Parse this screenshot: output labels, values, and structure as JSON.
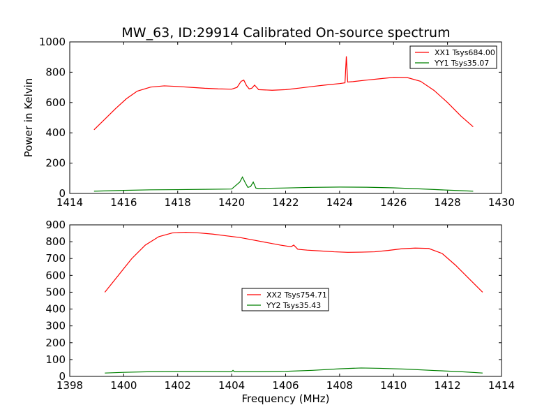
{
  "figure": {
    "title": "MW_63, ID:29914 Calibrated On-source spectrum"
  },
  "chart_data": [
    {
      "type": "line",
      "title": "MW_63, ID:29914 Calibrated On-source spectrum",
      "xlabel": "",
      "ylabel": "Power in Kelvin",
      "xlim": [
        1414,
        1430
      ],
      "ylim": [
        0,
        1000
      ],
      "xticks": [
        "1414",
        "1416",
        "1418",
        "1420",
        "1422",
        "1424",
        "1426",
        "1428",
        "1430"
      ],
      "yticks": [
        "0",
        "200",
        "400",
        "600",
        "800",
        "1000"
      ],
      "grid": false,
      "legend_position": "top-right",
      "series": [
        {
          "name": "XX1 Tsys684.00",
          "color": "#ff0000",
          "x": [
            1414.9,
            1415.3,
            1415.7,
            1416.1,
            1416.5,
            1417.0,
            1417.5,
            1418.0,
            1418.5,
            1419.0,
            1419.5,
            1420.0,
            1420.2,
            1420.35,
            1420.45,
            1420.55,
            1420.65,
            1420.75,
            1420.85,
            1421.0,
            1421.5,
            1422.0,
            1422.5,
            1423.0,
            1423.5,
            1424.0,
            1424.2,
            1424.25,
            1424.3,
            1424.5,
            1425.0,
            1425.5,
            1426.0,
            1426.5,
            1427.0,
            1427.5,
            1428.0,
            1428.5,
            1428.95
          ],
          "y": [
            420,
            490,
            560,
            625,
            675,
            702,
            710,
            706,
            700,
            694,
            690,
            688,
            700,
            740,
            748,
            712,
            690,
            695,
            715,
            685,
            681,
            685,
            695,
            706,
            716,
            725,
            730,
            905,
            735,
            738,
            748,
            757,
            766,
            765,
            740,
            680,
            600,
            510,
            440
          ]
        },
        {
          "name": "YY1 Tsys35.07",
          "color": "#008000",
          "x": [
            1414.9,
            1416.0,
            1417.0,
            1418.0,
            1419.0,
            1420.0,
            1420.3,
            1420.4,
            1420.5,
            1420.6,
            1420.7,
            1420.8,
            1420.9,
            1421.0,
            1422.0,
            1423.0,
            1424.0,
            1425.0,
            1426.0,
            1427.0,
            1428.0,
            1428.95
          ],
          "y": [
            15,
            20,
            24,
            25,
            27,
            29,
            75,
            108,
            72,
            40,
            45,
            75,
            35,
            33,
            36,
            40,
            42,
            41,
            37,
            30,
            22,
            15
          ]
        }
      ]
    },
    {
      "type": "line",
      "title": "",
      "xlabel": "Frequency (MHz)",
      "ylabel": "",
      "xlim": [
        1398,
        1414
      ],
      "ylim": [
        0,
        900
      ],
      "xticks": [
        "1398",
        "1400",
        "1402",
        "1404",
        "1406",
        "1408",
        "1410",
        "1412",
        "1414"
      ],
      "yticks": [
        "0",
        "100",
        "200",
        "300",
        "400",
        "500",
        "600",
        "700",
        "800",
        "900"
      ],
      "grid": false,
      "legend_position": "center",
      "series": [
        {
          "name": "XX2 Tsys754.71",
          "color": "#ff0000",
          "x": [
            1399.3,
            1399.8,
            1400.3,
            1400.8,
            1401.3,
            1401.8,
            1402.3,
            1402.8,
            1403.3,
            1403.8,
            1404.3,
            1404.8,
            1405.3,
            1405.8,
            1406.2,
            1406.3,
            1406.45,
            1406.8,
            1407.3,
            1407.8,
            1408.3,
            1408.8,
            1409.3,
            1409.8,
            1410.3,
            1410.8,
            1411.3,
            1411.8,
            1412.3,
            1412.8,
            1413.3
          ],
          "y": [
            500,
            600,
            700,
            780,
            830,
            852,
            856,
            852,
            845,
            835,
            825,
            810,
            795,
            780,
            770,
            780,
            755,
            750,
            745,
            740,
            737,
            738,
            740,
            748,
            758,
            762,
            760,
            730,
            660,
            580,
            500
          ]
        },
        {
          "name": "YY2 Tsys35.43",
          "color": "#008000",
          "x": [
            1399.3,
            1400.0,
            1401.0,
            1402.0,
            1403.0,
            1404.0,
            1404.05,
            1404.1,
            1405.0,
            1406.0,
            1407.0,
            1408.0,
            1408.8,
            1409.5,
            1410.5,
            1411.5,
            1412.5,
            1413.3
          ],
          "y": [
            20,
            24,
            28,
            29,
            29,
            28,
            36,
            28,
            28,
            30,
            36,
            45,
            50,
            48,
            43,
            35,
            28,
            20
          ]
        }
      ]
    }
  ]
}
